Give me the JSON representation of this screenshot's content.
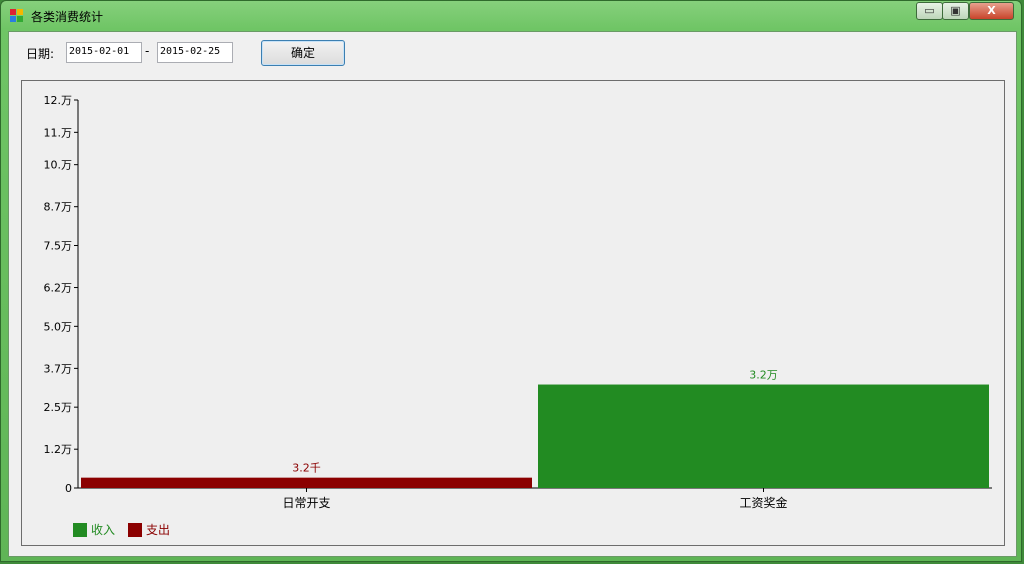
{
  "window": {
    "title": "各类消费统计"
  },
  "controls": {
    "min": "▭",
    "max": "▣",
    "close": "X"
  },
  "filter": {
    "date_label": "日期:",
    "start_date": "2015-02-01",
    "separator": "-",
    "end_date": "2015-02-25",
    "confirm_label": "确定"
  },
  "colors": {
    "income": "#228b22",
    "expense": "#8b0000"
  },
  "chart_data": {
    "type": "bar",
    "categories": [
      "日常开支",
      "工资奖金"
    ],
    "series": [
      {
        "name": "支出",
        "category": "日常开支",
        "value": 3200,
        "label": "3.2千",
        "color": "#8b0000"
      },
      {
        "name": "收入",
        "category": "工资奖金",
        "value": 32000,
        "label": "3.2万",
        "color": "#228b22"
      }
    ],
    "ylim": [
      0,
      120000
    ],
    "yticks": [
      {
        "value": 0,
        "label": "0"
      },
      {
        "value": 12000,
        "label": "1.2万"
      },
      {
        "value": 25000,
        "label": "2.5万"
      },
      {
        "value": 37000,
        "label": "3.7万"
      },
      {
        "value": 50000,
        "label": "5.0万"
      },
      {
        "value": 62000,
        "label": "6.2万"
      },
      {
        "value": 75000,
        "label": "7.5万"
      },
      {
        "value": 87000,
        "label": "8.7万"
      },
      {
        "value": 100000,
        "label": "10.万"
      },
      {
        "value": 110000,
        "label": "11.万"
      },
      {
        "value": 120000,
        "label": "12.万"
      }
    ],
    "legend": [
      {
        "name": "收入",
        "color": "#228b22"
      },
      {
        "name": "支出",
        "color": "#8b0000"
      }
    ],
    "legend_position": "bottom-left"
  }
}
